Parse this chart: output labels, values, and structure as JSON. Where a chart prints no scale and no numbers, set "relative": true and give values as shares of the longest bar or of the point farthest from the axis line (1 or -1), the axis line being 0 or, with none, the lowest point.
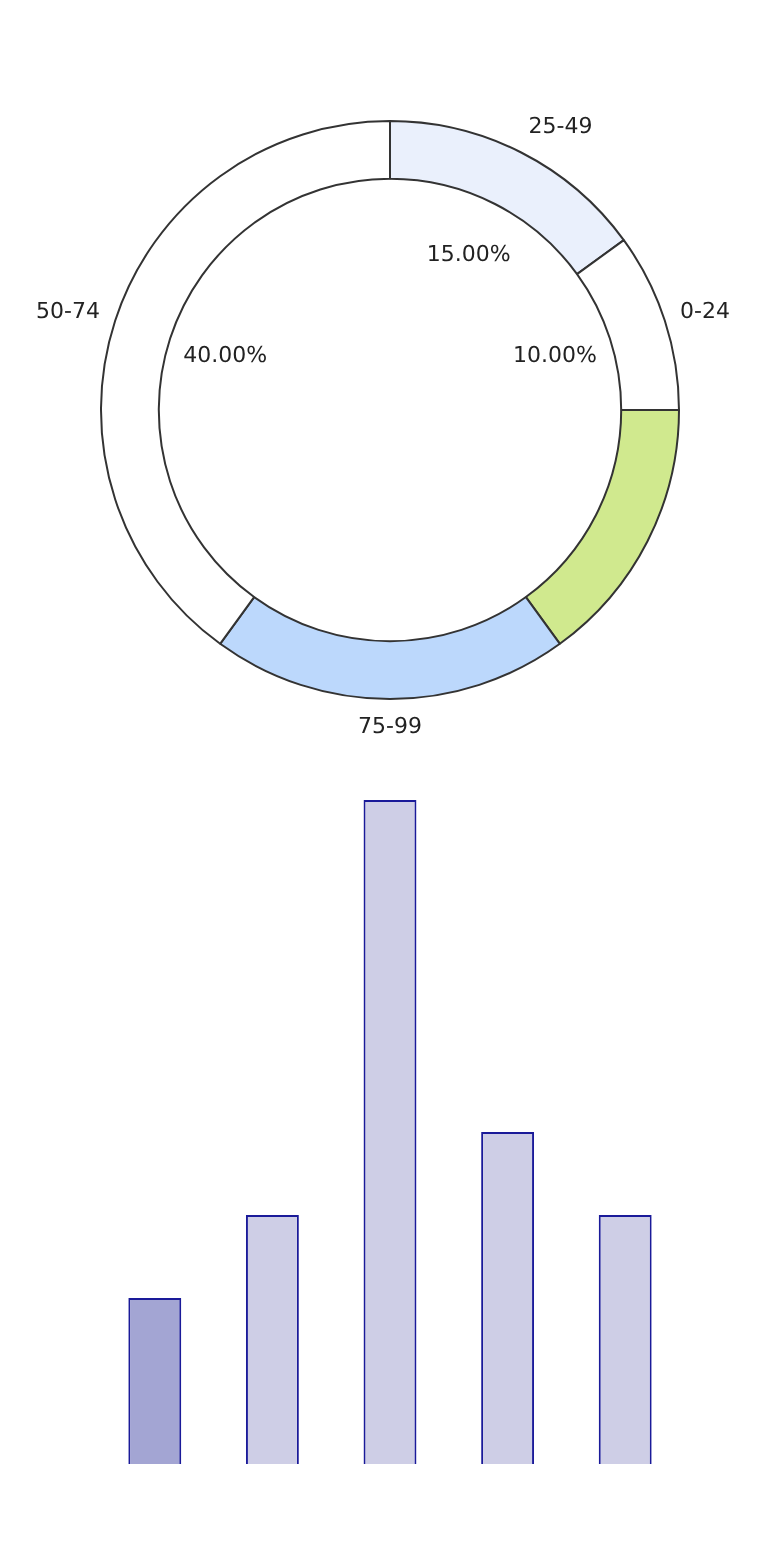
{
  "chart_data": [
    {
      "type": "donut",
      "categories": [
        "25-49",
        "0-24",
        null,
        "75-99",
        "50-74"
      ],
      "values": [
        15,
        10,
        15,
        20,
        40
      ],
      "colors": [
        "#eaf0fc",
        "#ffffff",
        "#d0e98e",
        "#bcd8fc",
        "#ffffff"
      ],
      "value_labels": [
        "15.00%",
        "10.00%",
        null,
        null,
        "40.00%"
      ]
    },
    {
      "type": "bar",
      "categories": [
        null,
        null,
        null,
        null,
        null
      ],
      "values": [
        0.25,
        0.375,
        1,
        0.5,
        0.375
      ],
      "colors": [
        "#a3a5d3",
        "#cecee6",
        "#cecee6",
        "#cecee6",
        "#cecee6"
      ],
      "relative": true
    }
  ]
}
